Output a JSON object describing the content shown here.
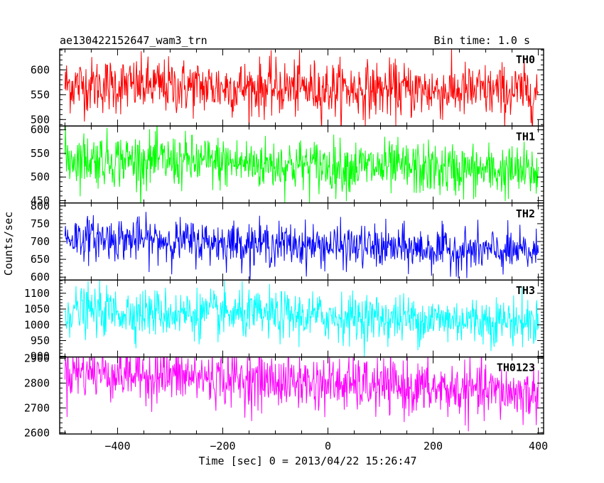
{
  "header": {
    "title": "ae130422152647_wam3_trn",
    "bin_time": "Bin time: 1.0 s"
  },
  "chart_data": {
    "type": "line",
    "xlabel": "Time [sec] 0 = 2013/04/22 15:26:47",
    "ylabel": "Counts/sec",
    "xlim": [
      -510,
      410
    ],
    "x_ticks": [
      -400,
      -200,
      0,
      200,
      400
    ],
    "x_tick_labels": [
      "−400",
      "−200",
      "0",
      "200",
      "400"
    ],
    "x_range": [
      -500,
      400
    ],
    "bin": 1.0,
    "panels": [
      {
        "name": "TH0",
        "color": "#ff0000",
        "ylim": [
          487,
          642
        ],
        "yticks": [
          500,
          550,
          600
        ],
        "mean_start": 570,
        "mean_end": 555,
        "noise": 28
      },
      {
        "name": "TH1",
        "color": "#00ff00",
        "ylim": [
          445,
          608
        ],
        "yticks": [
          450,
          500,
          550,
          600
        ],
        "mean_start": 540,
        "mean_end": 510,
        "noise": 28
      },
      {
        "name": "TH2",
        "color": "#0000ff",
        "ylim": [
          592,
          808
        ],
        "yticks": [
          600,
          650,
          700,
          750,
          800
        ],
        "mean_start": 712,
        "mean_end": 668,
        "noise": 30
      },
      {
        "name": "TH3",
        "color": "#00ffff",
        "ylim": [
          898,
          1142
        ],
        "yticks": [
          900,
          950,
          1000,
          1050,
          1100
        ],
        "mean_start": 1045,
        "mean_end": 1010,
        "noise": 38
      },
      {
        "name": "TH0123",
        "color": "#ff00ff",
        "ylim": [
          2595,
          2905
        ],
        "yticks": [
          2600,
          2700,
          2800,
          2900
        ],
        "mean_start": 2850,
        "mean_end": 2755,
        "noise": 55
      }
    ]
  }
}
